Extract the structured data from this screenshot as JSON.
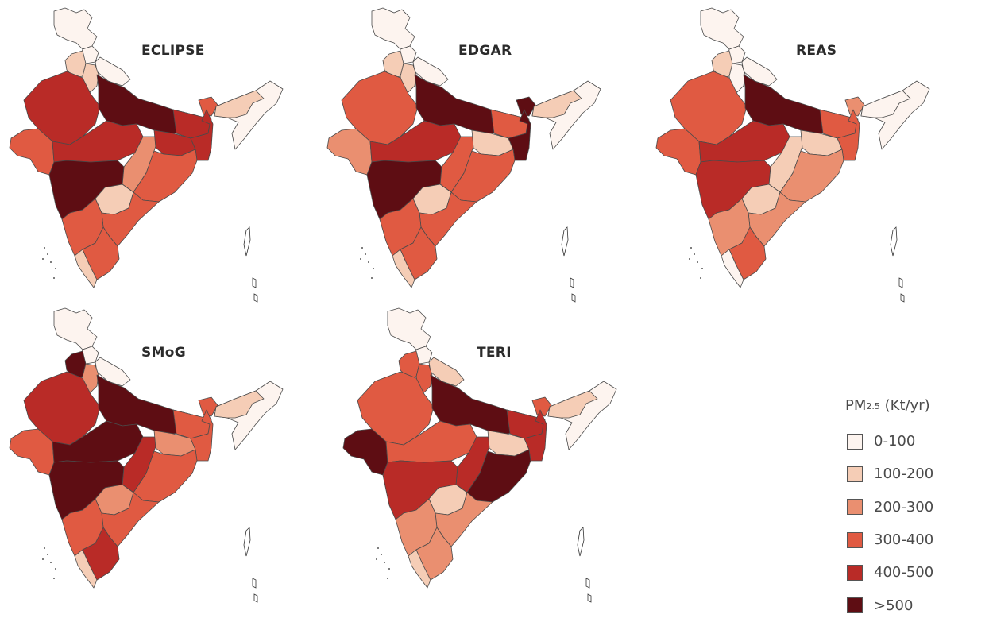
{
  "palette": {
    "c0": "#fdf4ef",
    "c1": "#f5cdb6",
    "c2": "#ea8f70",
    "c3": "#e05a42",
    "c4": "#b92b27",
    "c5": "#5e0d13"
  },
  "legend": {
    "title_main": "PM",
    "title_sub": "2.5",
    "title_unit": " (Kt/yr)",
    "items": [
      {
        "label": "0-100",
        "class": "c0"
      },
      {
        "label": "100-200",
        "class": "c1"
      },
      {
        "label": "200-300",
        "class": "c2"
      },
      {
        "label": "300-400",
        "class": "c3"
      },
      {
        "label": "400-500",
        "class": "c4"
      },
      {
        "label": ">500",
        "class": "c5"
      }
    ]
  },
  "maps": [
    {
      "title": "ECLIPSE",
      "regions": {
        "jk": "c0",
        "hp": "c0",
        "uk": "c0",
        "pb": "c1",
        "hr": "c1",
        "rj": "c4",
        "up": "c5",
        "br": "c4",
        "gj": "c3",
        "mp": "c4",
        "cg": "c2",
        "jh": "c4",
        "wb": "c4",
        "od": "c3",
        "mh": "c5",
        "tg": "c1",
        "ap": "c3",
        "ka": "c3",
        "kl": "c1",
        "tn": "c3",
        "ne": "c0",
        "assam": "c1",
        "sk": "c3"
      }
    },
    {
      "title": "EDGAR",
      "regions": {
        "jk": "c0",
        "hp": "c0",
        "uk": "c0",
        "pb": "c1",
        "hr": "c1",
        "rj": "c3",
        "up": "c5",
        "br": "c3",
        "gj": "c2",
        "mp": "c4",
        "cg": "c3",
        "jh": "c1",
        "wb": "c5",
        "od": "c3",
        "mh": "c5",
        "tg": "c1",
        "ap": "c3",
        "ka": "c3",
        "kl": "c1",
        "tn": "c3",
        "ne": "c0",
        "assam": "c1",
        "sk": "c5"
      }
    },
    {
      "title": "REAS",
      "regions": {
        "jk": "c0",
        "hp": "c0",
        "uk": "c0",
        "pb": "c1",
        "hr": "c0",
        "rj": "c3",
        "up": "c5",
        "br": "c3",
        "gj": "c3",
        "mp": "c4",
        "cg": "c1",
        "jh": "c1",
        "wb": "c3",
        "od": "c2",
        "mh": "c4",
        "tg": "c1",
        "ap": "c2",
        "ka": "c2",
        "kl": "c0",
        "tn": "c3",
        "ne": "c0",
        "assam": "c0",
        "sk": "c2"
      }
    },
    {
      "title": "SMoG",
      "regions": {
        "jk": "c0",
        "hp": "c0",
        "uk": "c0",
        "pb": "c5",
        "hr": "c2",
        "rj": "c4",
        "up": "c5",
        "br": "c3",
        "gj": "c3",
        "mp": "c5",
        "cg": "c4",
        "jh": "c2",
        "wb": "c3",
        "od": "c3",
        "mh": "c5",
        "tg": "c2",
        "ap": "c3",
        "ka": "c3",
        "kl": "c1",
        "tn": "c4",
        "ne": "c0",
        "assam": "c1",
        "sk": "c3"
      }
    },
    {
      "title": "TERI",
      "regions": {
        "jk": "c0",
        "hp": "c0",
        "uk": "c1",
        "pb": "c3",
        "hr": "c3",
        "rj": "c3",
        "up": "c5",
        "br": "c4",
        "gj": "c5",
        "mp": "c3",
        "cg": "c4",
        "jh": "c1",
        "wb": "c4",
        "od": "c5",
        "mh": "c4",
        "tg": "c1",
        "ap": "c2",
        "ka": "c2",
        "kl": "c1",
        "tn": "c2",
        "ne": "c0",
        "assam": "c1",
        "sk": "c3"
      }
    }
  ]
}
